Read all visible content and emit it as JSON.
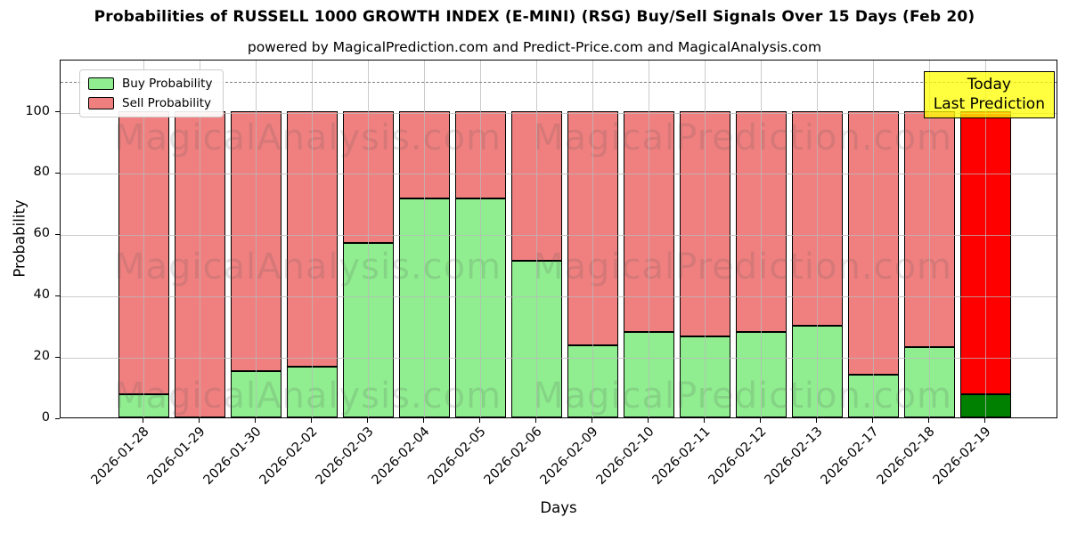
{
  "title": "Probabilities of RUSSELL 1000 GROWTH INDEX (E-MINI) (RSG) Buy/Sell Signals Over 15 Days (Feb 20)",
  "subtitle": "powered by MagicalPrediction.com and Predict-Price.com and MagicalAnalysis.com",
  "annotation": {
    "line1": "Today",
    "line2": "Last Prediction"
  },
  "watermarks": {
    "left": "MagicalAnalysis.com",
    "right": "MagicalPrediction.com"
  },
  "chart_data": {
    "type": "bar",
    "stacked": true,
    "title": "Probabilities of RUSSELL 1000 GROWTH INDEX (E-MINI) (RSG) Buy/Sell Signals Over 15 Days (Feb 20)",
    "xlabel": "Days",
    "ylabel": "Probability",
    "ylim": [
      0,
      117
    ],
    "yticks": [
      0,
      20,
      40,
      60,
      80,
      100
    ],
    "dashed_line_y": 110,
    "grid": true,
    "legend_position": "upper-left",
    "categories": [
      "2026-01-28",
      "2026-01-29",
      "2026-01-30",
      "2026-02-02",
      "2026-02-03",
      "2026-02-04",
      "2026-02-05",
      "2026-02-06",
      "2026-02-09",
      "2026-02-10",
      "2026-02-11",
      "2026-02-12",
      "2026-02-13",
      "2026-02-17",
      "2026-02-18",
      "2026-02-19"
    ],
    "series": [
      {
        "name": "Buy Probability",
        "color": "#90EE90",
        "values": [
          7.5,
          0,
          15,
          16.5,
          57,
          71.5,
          71.5,
          51,
          23.5,
          28,
          26.5,
          28,
          30,
          14,
          23,
          7.5
        ]
      },
      {
        "name": "Sell Probability",
        "color": "#F08080",
        "values": [
          92.5,
          100,
          85,
          83.5,
          43,
          28.5,
          28.5,
          49,
          76.5,
          72,
          73.5,
          72,
          70,
          86,
          77,
          92.5
        ]
      }
    ],
    "today_bar": {
      "category": "2026-02-19",
      "buy_color": "#008000",
      "sell_color": "#FF0000"
    }
  }
}
